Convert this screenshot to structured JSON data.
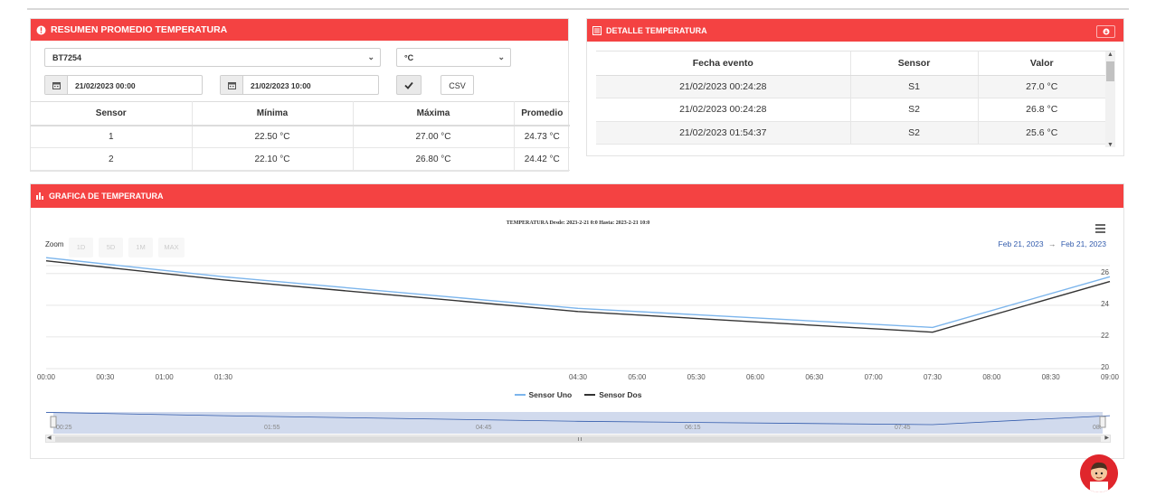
{
  "resumen": {
    "title": "RESUMEN PROMEDIO TEMPERATURA",
    "device_selected": "BT7254",
    "unit_selected": "°C",
    "date_from": "21/02/2023 00:00",
    "date_to": "21/02/2023 10:00",
    "csv_label": "CSV",
    "table": {
      "headers": [
        "Sensor",
        "Mínima",
        "Máxima",
        "Promedio"
      ],
      "rows": [
        [
          "1",
          "22.50 °C",
          "27.00 °C",
          "24.73 °C"
        ],
        [
          "2",
          "22.10 °C",
          "26.80 °C",
          "24.42 °C"
        ]
      ]
    }
  },
  "detalle": {
    "title": "DETALLE TEMPERATURA",
    "table": {
      "headers": [
        "Fecha evento",
        "Sensor",
        "Valor"
      ],
      "rows": [
        [
          "21/02/2023 00:24:28",
          "S1",
          "27.0 °C"
        ],
        [
          "21/02/2023 00:24:28",
          "S2",
          "26.8 °C"
        ],
        [
          "21/02/2023 01:54:37",
          "S2",
          "25.6 °C"
        ]
      ]
    }
  },
  "grafica": {
    "title": "GRAFICA DE TEMPERATURA",
    "zoom_label": "Zoom",
    "zoom_buttons": [
      "1D",
      "5D",
      "1M",
      "MAX"
    ],
    "range_from": "Feb 21, 2023",
    "range_arrow": "→",
    "range_to": "Feb 21, 2023",
    "navigator_labels": [
      "00:25",
      "01:55",
      "04:45",
      "06:15",
      "07:45",
      "08:"
    ]
  },
  "chart_data": {
    "type": "line",
    "title": "TEMPERATURA Desde: 2023-2-21 0:0 Hasta: 2023-2-21 10:0",
    "x_tick_labels": [
      "00:00",
      "00:30",
      "01:00",
      "01:30",
      "04:30",
      "05:00",
      "05:30",
      "06:00",
      "06:30",
      "07:00",
      "07:30",
      "08:00",
      "08:30",
      "09:00"
    ],
    "y_tick_labels": [
      "20",
      "22",
      "24",
      "26"
    ],
    "ylim": [
      20,
      26.5
    ],
    "y_axis_side": "right",
    "grid": true,
    "legend_position": "bottom-center",
    "x": [
      "00:00",
      "01:30",
      "04:30",
      "07:30",
      "09:00"
    ],
    "series": [
      {
        "name": "Sensor Uno",
        "color": "#7cb5ec",
        "values": [
          27.0,
          25.8,
          23.8,
          22.6,
          25.8
        ]
      },
      {
        "name": "Sensor Dos",
        "color": "#333333",
        "values": [
          26.8,
          25.6,
          23.6,
          22.3,
          25.5
        ]
      }
    ]
  },
  "colors": {
    "header_red": "#f44242",
    "series_1": "#7cb5ec",
    "series_2": "#333333",
    "range_text": "#335cad"
  }
}
